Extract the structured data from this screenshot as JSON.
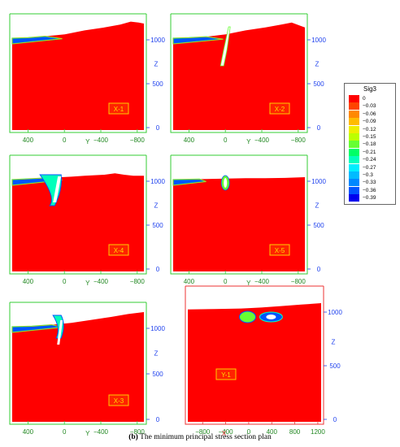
{
  "caption": {
    "letter": "(b)",
    "text": "The minimum principal stress section plan"
  },
  "legend": {
    "title": "Sig3",
    "entries": [
      {
        "label": "0",
        "color": "#ff0000"
      },
      {
        "label": "−0.03",
        "color": "#ff4400"
      },
      {
        "label": "−0.06",
        "color": "#ff8800"
      },
      {
        "label": "−0.09",
        "color": "#ffbb00"
      },
      {
        "label": "−0.12",
        "color": "#eeee00"
      },
      {
        "label": "−0.15",
        "color": "#bbff00"
      },
      {
        "label": "−0.18",
        "color": "#66ff33"
      },
      {
        "label": "−0.21",
        "color": "#00ff66"
      },
      {
        "label": "−0.24",
        "color": "#00ffbb"
      },
      {
        "label": "−0.27",
        "color": "#00eeff"
      },
      {
        "label": "−0.3",
        "color": "#00bbff"
      },
      {
        "label": "−0.33",
        "color": "#0088ff"
      },
      {
        "label": "−0.36",
        "color": "#0055ff"
      },
      {
        "label": "−0.39",
        "color": "#0000ee"
      }
    ]
  },
  "panels": [
    {
      "id": "X-1",
      "label": "X-1",
      "frame_color": "#33cc33",
      "h_axis": "Y",
      "h_ticks": [
        {
          "v": 400,
          "t": "400"
        },
        {
          "v": 0,
          "t": "0"
        },
        {
          "v": -400,
          "t": "−400"
        },
        {
          "v": -800,
          "t": "−800"
        }
      ],
      "z_ticks": [
        {
          "v": 1000,
          "t": "1000"
        },
        {
          "v": 500,
          "t": "500"
        },
        {
          "v": 0,
          "t": "0"
        }
      ],
      "z_label": "Z"
    },
    {
      "id": "X-2",
      "label": "X-2",
      "frame_color": "#33cc33",
      "h_axis": "Y",
      "h_ticks": [
        {
          "v": 400,
          "t": "400"
        },
        {
          "v": 0,
          "t": "0"
        },
        {
          "v": -400,
          "t": "−400"
        },
        {
          "v": -800,
          "t": "−800"
        }
      ],
      "z_ticks": [
        {
          "v": 1000,
          "t": "1000"
        },
        {
          "v": 500,
          "t": "500"
        },
        {
          "v": 0,
          "t": "0"
        }
      ],
      "z_label": "Z"
    },
    {
      "id": "X-4",
      "label": "X-4",
      "frame_color": "#33cc33",
      "h_axis": "Y",
      "h_ticks": [
        {
          "v": 400,
          "t": "400"
        },
        {
          "v": 0,
          "t": "0"
        },
        {
          "v": -400,
          "t": "−400"
        },
        {
          "v": -800,
          "t": "−800"
        }
      ],
      "z_ticks": [
        {
          "v": 1000,
          "t": "1000"
        },
        {
          "v": 500,
          "t": "500"
        },
        {
          "v": 0,
          "t": "0"
        }
      ],
      "z_label": "Z"
    },
    {
      "id": "X-5",
      "label": "X-5",
      "frame_color": "#33cc33",
      "h_axis": "Y",
      "h_ticks": [
        {
          "v": 400,
          "t": "400"
        },
        {
          "v": 0,
          "t": "0"
        },
        {
          "v": -400,
          "t": "−400"
        },
        {
          "v": -800,
          "t": "−800"
        }
      ],
      "z_ticks": [
        {
          "v": 1000,
          "t": "1000"
        },
        {
          "v": 500,
          "t": "500"
        },
        {
          "v": 0,
          "t": "0"
        }
      ],
      "z_label": "Z"
    },
    {
      "id": "X-3",
      "label": "X-3",
      "frame_color": "#33cc33",
      "h_axis": "Y",
      "h_ticks": [
        {
          "v": 400,
          "t": "400"
        },
        {
          "v": 0,
          "t": "0"
        },
        {
          "v": -400,
          "t": "−400"
        },
        {
          "v": -800,
          "t": "−800"
        }
      ],
      "z_ticks": [
        {
          "v": 1000,
          "t": "1000"
        },
        {
          "v": 500,
          "t": "500"
        },
        {
          "v": 0,
          "t": "0"
        }
      ],
      "z_label": "Z"
    },
    {
      "id": "Y-1",
      "label": "Y-1",
      "frame_color": "#ee3333",
      "h_axis": "X",
      "h_ticks": [
        {
          "v": -800,
          "t": "−800"
        },
        {
          "v": -400,
          "t": "−400"
        },
        {
          "v": 0,
          "t": "0"
        },
        {
          "v": 400,
          "t": "400"
        },
        {
          "v": 800,
          "t": "800"
        },
        {
          "v": 1200,
          "t": "1200"
        }
      ],
      "z_ticks": [
        {
          "v": 1000,
          "t": "1000"
        },
        {
          "v": 500,
          "t": "500"
        },
        {
          "v": 0,
          "t": "0"
        }
      ],
      "z_label": "Z"
    }
  ]
}
